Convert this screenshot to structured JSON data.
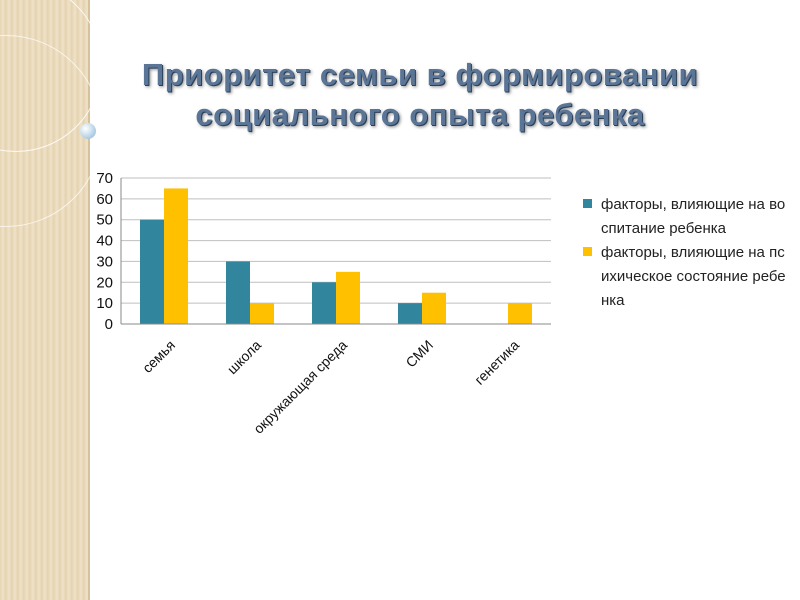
{
  "slide": {
    "title": "Приоритет семьи в формировании социального опыта ребенка"
  },
  "chart_data": {
    "type": "bar",
    "title": "",
    "xlabel": "",
    "ylabel": "",
    "categories": [
      "семья",
      "школа",
      "окружающая среда",
      "СМИ",
      "генетика"
    ],
    "series": [
      {
        "name": "факторы, влияющие на воспитание ребенка",
        "color": "#31859c",
        "values": [
          50,
          30,
          20,
          10,
          0
        ]
      },
      {
        "name": "факторы, влияющие на психическое состояние ребенка",
        "color": "#ffc000",
        "values": [
          65,
          10,
          25,
          15,
          10
        ]
      }
    ],
    "ylim": [
      0,
      70
    ],
    "yticks": [
      0,
      10,
      20,
      30,
      40,
      50,
      60,
      70
    ],
    "grid": true,
    "legend_position": "right"
  }
}
